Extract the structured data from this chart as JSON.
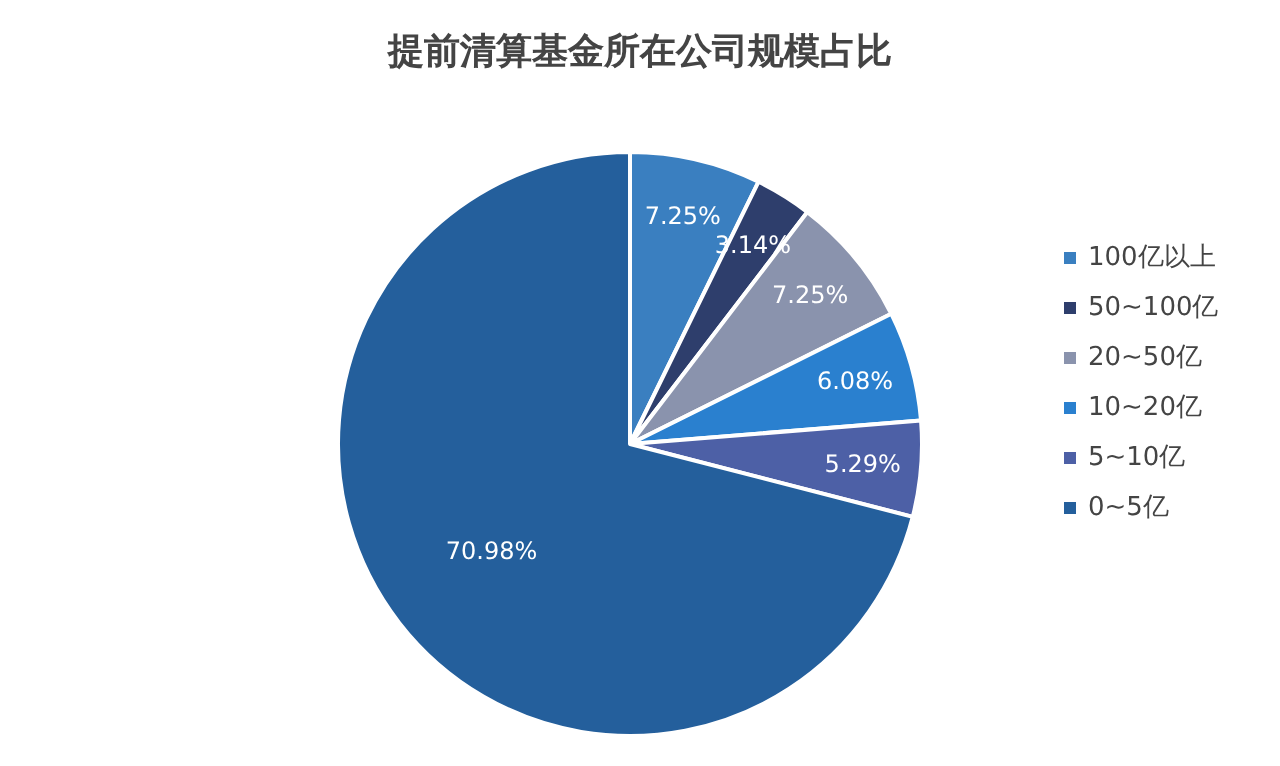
{
  "chart_data": {
    "type": "pie",
    "title": "提前清算基金所在公司规模占比",
    "categories": [
      "100亿以上",
      "50~100亿",
      "20~50亿",
      "10~20亿",
      "5~10亿",
      "0~5亿"
    ],
    "values": [
      7.25,
      3.14,
      7.25,
      6.08,
      5.29,
      70.98
    ],
    "colors": [
      "#3a7fc0",
      "#2e3e6c",
      "#8a93ad",
      "#2a80cf",
      "#4d60a6",
      "#245f9c"
    ],
    "value_labels": [
      "7.25%",
      "3.14%",
      "7.25%",
      "6.08%",
      "5.29%",
      "70.98%"
    ],
    "legend": "right"
  }
}
